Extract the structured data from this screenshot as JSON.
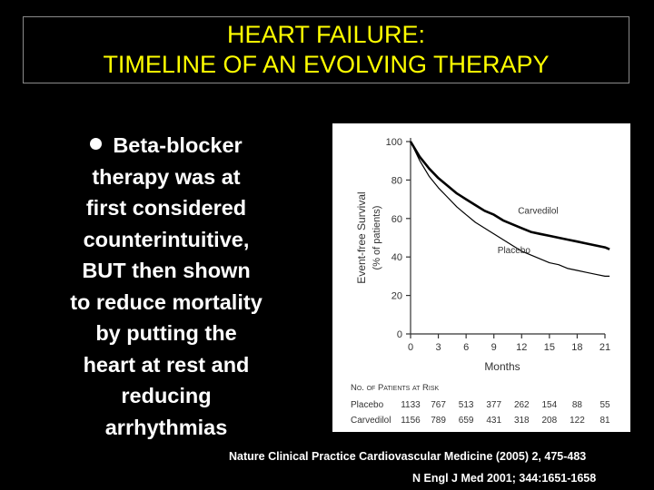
{
  "title": {
    "line1": "HEART FAILURE:",
    "line2": "TIMELINE OF AN EVOLVING THERAPY"
  },
  "bullet": {
    "lines": [
      "Beta-blocker",
      "therapy was at",
      "first  considered",
      "counterintuitive,",
      "BUT then shown",
      "to reduce mortality",
      "by putting the",
      "heart at rest and",
      "reducing",
      "arrhythmias"
    ]
  },
  "chart_data": {
    "type": "line",
    "ylabel": "Event-free Survival",
    "ylabel2": "(% of patients)",
    "xlabel": "Months",
    "xlim": [
      0,
      21
    ],
    "ylim": [
      0,
      100
    ],
    "x_ticks": [
      "0",
      "3",
      "6",
      "9",
      "12",
      "15",
      "18",
      "21"
    ],
    "y_ticks": [
      "0",
      "20",
      "40",
      "60",
      "80",
      "100"
    ],
    "series": [
      {
        "name": "Carvedilol",
        "color": "#000000",
        "x": [
          0,
          0.5,
          1,
          1.5,
          2,
          3,
          4,
          5,
          6,
          7,
          8,
          9,
          10,
          11,
          12,
          13,
          14,
          15,
          16,
          17,
          18,
          19,
          20,
          21,
          21.5
        ],
        "y": [
          100,
          96,
          92,
          89,
          86,
          81,
          77,
          73,
          70,
          67,
          64,
          62,
          59,
          57,
          55,
          53,
          52,
          51,
          50,
          49,
          48,
          47,
          46,
          45,
          44
        ]
      },
      {
        "name": "Placebo",
        "color": "#000000",
        "x": [
          0,
          0.5,
          1,
          1.5,
          2,
          3,
          4,
          5,
          6,
          7,
          8,
          9,
          10,
          11,
          12,
          13,
          14,
          15,
          16,
          17,
          18,
          19,
          20,
          21,
          21.5
        ],
        "y": [
          100,
          95,
          90,
          86,
          82,
          76,
          71,
          66,
          62,
          58,
          55,
          52,
          49,
          46,
          43,
          41,
          39,
          37,
          36,
          34,
          33,
          32,
          31,
          30,
          30
        ]
      }
    ],
    "risk_table": {
      "header": "No. of Patients at Risk",
      "rows": [
        {
          "label": "Placebo",
          "values": [
            "1133",
            "767",
            "513",
            "377",
            "262",
            "154",
            "88",
            "55"
          ]
        },
        {
          "label": "Carvedilol",
          "values": [
            "1156",
            "789",
            "659",
            "431",
            "318",
            "208",
            "122",
            "81"
          ]
        }
      ]
    }
  },
  "citations": {
    "line1": "Nature Clinical Practice Cardiovascular Medicine (2005) 2, 475-483",
    "line2": "N Engl J Med 2001; 344:1651-1658"
  }
}
